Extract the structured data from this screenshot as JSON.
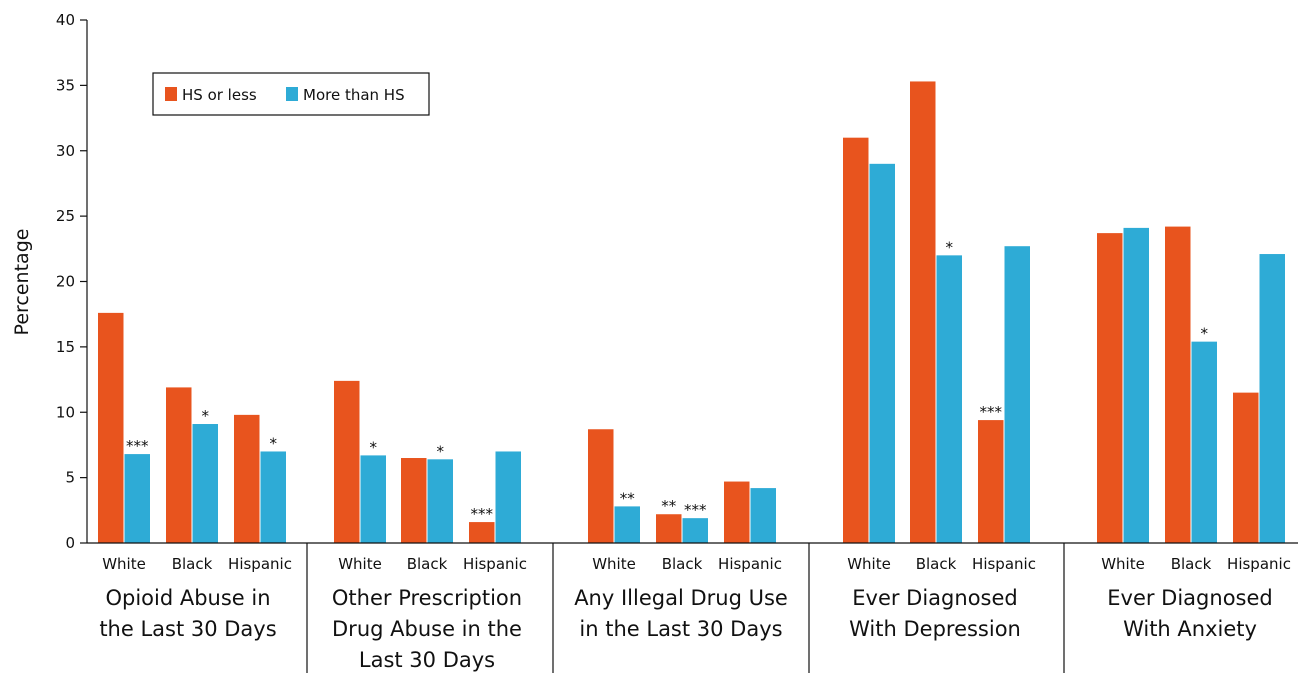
{
  "chart_data": {
    "type": "bar",
    "ylabel": "Percentage",
    "ylim": [
      0,
      40
    ],
    "yticks": [
      0,
      5,
      10,
      15,
      20,
      25,
      30,
      35,
      40
    ],
    "grid": false,
    "legend": {
      "placement": "top-left"
    },
    "series": [
      {
        "name": "HS or less",
        "color": "#E8541E"
      },
      {
        "name": "More than HS",
        "color": "#2EABD6"
      }
    ],
    "groups": [
      {
        "label_lines": [
          "Opioid Abuse in",
          "the Last 30 Days"
        ],
        "subgroups": [
          {
            "label": "White",
            "values": [
              17.6,
              6.8
            ],
            "sig": [
              "",
              "***"
            ]
          },
          {
            "label": "Black",
            "values": [
              11.9,
              9.1
            ],
            "sig": [
              "",
              "*"
            ]
          },
          {
            "label": "Hispanic",
            "values": [
              9.8,
              7.0
            ],
            "sig": [
              "",
              "*"
            ]
          }
        ]
      },
      {
        "label_lines": [
          "Other Prescription",
          "Drug Abuse in the",
          "Last 30 Days"
        ],
        "subgroups": [
          {
            "label": "White",
            "values": [
              12.4,
              6.7
            ],
            "sig": [
              "",
              "*"
            ]
          },
          {
            "label": "Black",
            "values": [
              6.5,
              6.4
            ],
            "sig": [
              "",
              "*"
            ]
          },
          {
            "label": "Hispanic",
            "values": [
              1.6,
              7.0
            ],
            "sig": [
              "***",
              ""
            ]
          }
        ]
      },
      {
        "label_lines": [
          "Any Illegal Drug Use",
          "in the Last 30 Days"
        ],
        "subgroups": [
          {
            "label": "White",
            "values": [
              8.7,
              2.8
            ],
            "sig": [
              "",
              "**"
            ]
          },
          {
            "label": "Black",
            "values": [
              2.2,
              1.9
            ],
            "sig": [
              "**",
              "***"
            ]
          },
          {
            "label": "Hispanic",
            "values": [
              4.7,
              4.2
            ],
            "sig": [
              "",
              ""
            ]
          }
        ]
      },
      {
        "label_lines": [
          "Ever Diagnosed",
          "With Depression"
        ],
        "subgroups": [
          {
            "label": "White",
            "values": [
              31.0,
              29.0
            ],
            "sig": [
              "",
              ""
            ]
          },
          {
            "label": "Black",
            "values": [
              35.3,
              22.0
            ],
            "sig": [
              "",
              "*"
            ]
          },
          {
            "label": "Hispanic",
            "values": [
              9.4,
              22.7
            ],
            "sig": [
              "***",
              ""
            ]
          }
        ]
      },
      {
        "label_lines": [
          "Ever Diagnosed",
          "With Anxiety"
        ],
        "subgroups": [
          {
            "label": "White",
            "values": [
              23.7,
              24.1
            ],
            "sig": [
              "",
              ""
            ]
          },
          {
            "label": "Black",
            "values": [
              24.2,
              15.4
            ],
            "sig": [
              "",
              "*"
            ]
          },
          {
            "label": "Hispanic",
            "values": [
              11.5,
              22.1
            ],
            "sig": [
              "",
              ""
            ]
          }
        ]
      }
    ]
  }
}
